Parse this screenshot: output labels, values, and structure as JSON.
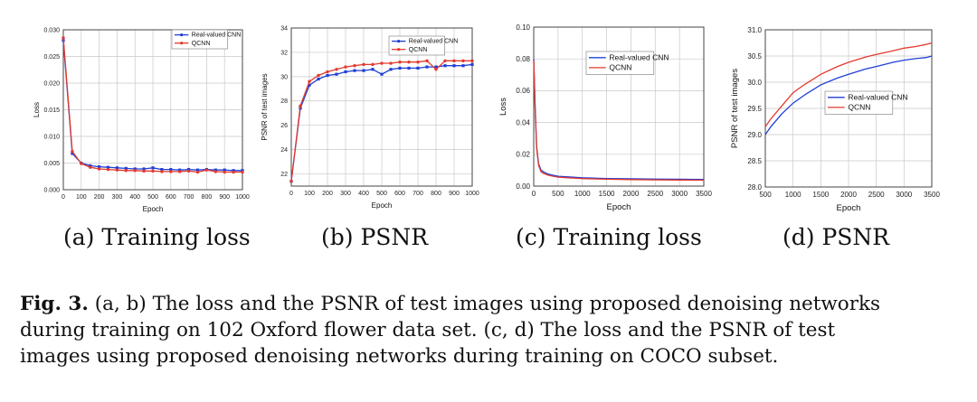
{
  "subcaptions": [
    "(a) Training loss",
    "(b) PSNR",
    "(c) Training loss",
    "(d) PSNR"
  ],
  "caption": {
    "label": "Fig. 3.",
    "line1": "(a, b) The loss and the PSNR of test images using proposed denoising networks",
    "line2": "during training on 102 Oxford flower data set. (c, d) The loss and the PSNR of test",
    "line3": "images using proposed denoising networks during training on COCO subset."
  },
  "colors": {
    "real": "#1f3fd6",
    "qcnn": "#e23a2e",
    "grid": "#c8c8c8",
    "axis": "#444444"
  },
  "chart_data": [
    {
      "type": "line",
      "xlabel": "Epoch",
      "ylabel": "Loss",
      "xlim": [
        0,
        1000
      ],
      "ylim": [
        0,
        0.03
      ],
      "xticks": [
        0,
        100,
        200,
        300,
        400,
        500,
        600,
        700,
        800,
        900,
        1000
      ],
      "yticks": [
        0.0,
        0.005,
        0.01,
        0.015,
        0.02,
        0.025,
        0.03
      ],
      "ytick_labels": [
        "0.000",
        "0.005",
        "0.010",
        "0.015",
        "0.020",
        "0.025",
        "0.030"
      ],
      "legend": "top-right",
      "markers": true,
      "series": [
        {
          "name": "Real-valued CNN",
          "x": [
            0,
            50,
            100,
            150,
            200,
            250,
            300,
            350,
            400,
            450,
            500,
            550,
            600,
            650,
            700,
            750,
            800,
            850,
            900,
            950,
            1000
          ],
          "y": [
            0.028,
            0.0068,
            0.005,
            0.0045,
            0.0043,
            0.0042,
            0.0041,
            0.004,
            0.0039,
            0.0039,
            0.0041,
            0.0038,
            0.0038,
            0.0037,
            0.0038,
            0.0037,
            0.0038,
            0.0037,
            0.0037,
            0.0036,
            0.0036
          ]
        },
        {
          "name": "QCNN",
          "x": [
            0,
            50,
            100,
            150,
            200,
            250,
            300,
            350,
            400,
            450,
            500,
            550,
            600,
            650,
            700,
            750,
            800,
            850,
            900,
            950,
            1000
          ],
          "y": [
            0.0285,
            0.0072,
            0.0049,
            0.0042,
            0.0039,
            0.0038,
            0.0037,
            0.0036,
            0.0036,
            0.0035,
            0.0035,
            0.0034,
            0.0034,
            0.0034,
            0.0035,
            0.0033,
            0.0037,
            0.0034,
            0.0033,
            0.0033,
            0.0033
          ]
        }
      ]
    },
    {
      "type": "line",
      "xlabel": "Epoch",
      "ylabel": "PSNR of test images",
      "xlim": [
        0,
        1000
      ],
      "ylim": [
        21,
        34
      ],
      "xticks": [
        0,
        100,
        200,
        300,
        400,
        500,
        600,
        700,
        800,
        900,
        1000
      ],
      "yticks": [
        22,
        24,
        26,
        28,
        30,
        32,
        34
      ],
      "ytick_labels": [
        "22",
        "24",
        "26",
        "28",
        "30",
        "32",
        "34"
      ],
      "legend": "top-right",
      "markers": true,
      "series": [
        {
          "name": "Real-valued CNN",
          "x": [
            0,
            50,
            100,
            150,
            200,
            250,
            300,
            350,
            400,
            450,
            500,
            550,
            600,
            650,
            700,
            750,
            800,
            850,
            900,
            950,
            1000
          ],
          "y": [
            21.4,
            27.4,
            29.3,
            29.8,
            30.1,
            30.2,
            30.4,
            30.5,
            30.5,
            30.6,
            30.2,
            30.6,
            30.7,
            30.7,
            30.7,
            30.8,
            30.8,
            30.9,
            30.9,
            30.9,
            31.0
          ]
        },
        {
          "name": "QCNN",
          "x": [
            0,
            50,
            100,
            150,
            200,
            250,
            300,
            350,
            400,
            450,
            500,
            550,
            600,
            650,
            700,
            750,
            800,
            850,
            900,
            950,
            1000
          ],
          "y": [
            21.4,
            27.6,
            29.6,
            30.1,
            30.4,
            30.6,
            30.8,
            30.9,
            31.0,
            31.0,
            31.1,
            31.1,
            31.2,
            31.2,
            31.2,
            31.3,
            30.6,
            31.3,
            31.3,
            31.3,
            31.3
          ]
        }
      ]
    },
    {
      "type": "line",
      "xlabel": "Epoch",
      "ylabel": "Loss",
      "xlim": [
        0,
        3500
      ],
      "ylim": [
        0,
        0.1
      ],
      "xticks": [
        0,
        500,
        1000,
        1500,
        2000,
        2500,
        3000,
        3500
      ],
      "yticks": [
        0.0,
        0.02,
        0.04,
        0.06,
        0.08,
        0.1
      ],
      "ytick_labels": [
        "0.00",
        "0.02",
        "0.04",
        "0.06",
        "0.08",
        "0.10"
      ],
      "legend": "top-right",
      "markers": false,
      "series": [
        {
          "name": "Real-valued CNN",
          "x": [
            0,
            30,
            60,
            100,
            150,
            200,
            300,
            400,
            500,
            700,
            1000,
            1500,
            2000,
            2500,
            3000,
            3500
          ],
          "y": [
            0.08,
            0.05,
            0.025,
            0.014,
            0.01,
            0.009,
            0.0075,
            0.0068,
            0.0062,
            0.0058,
            0.0052,
            0.0048,
            0.0046,
            0.0044,
            0.0043,
            0.0042
          ]
        },
        {
          "name": "QCNN",
          "x": [
            0,
            30,
            60,
            100,
            150,
            200,
            300,
            400,
            500,
            700,
            1000,
            1500,
            2000,
            2500,
            3000,
            3500
          ],
          "y": [
            0.079,
            0.048,
            0.024,
            0.013,
            0.009,
            0.008,
            0.0068,
            0.0062,
            0.0056,
            0.0052,
            0.0047,
            0.0043,
            0.0041,
            0.0039,
            0.0038,
            0.0037
          ]
        }
      ]
    },
    {
      "type": "line",
      "xlabel": "Epoch",
      "ylabel": "PSNR of test images",
      "xlim": [
        500,
        3500
      ],
      "ylim": [
        28.0,
        31.0
      ],
      "xticks": [
        500,
        1000,
        1500,
        2000,
        2500,
        3000,
        3500
      ],
      "yticks": [
        28.0,
        28.5,
        29.0,
        29.5,
        30.0,
        30.5,
        31.0
      ],
      "ytick_labels": [
        "28.0",
        "28.5",
        "29.0",
        "29.5",
        "30.0",
        "30.5",
        "31.0"
      ],
      "legend": "center-right",
      "markers": false,
      "series": [
        {
          "name": "Real-valued CNN",
          "x": [
            500,
            600,
            800,
            1000,
            1200,
            1500,
            1800,
            2000,
            2300,
            2500,
            2800,
            3000,
            3200,
            3400,
            3500
          ],
          "y": [
            29.0,
            29.15,
            29.4,
            29.6,
            29.75,
            29.95,
            30.08,
            30.15,
            30.25,
            30.3,
            30.38,
            30.42,
            30.45,
            30.47,
            30.5
          ]
        },
        {
          "name": "QCNN",
          "x": [
            500,
            600,
            800,
            1000,
            1200,
            1500,
            1800,
            2000,
            2300,
            2500,
            2800,
            3000,
            3200,
            3400,
            3500
          ],
          "y": [
            29.15,
            29.3,
            29.55,
            29.8,
            29.95,
            30.15,
            30.3,
            30.38,
            30.48,
            30.53,
            30.6,
            30.65,
            30.68,
            30.72,
            30.75
          ]
        }
      ]
    }
  ]
}
